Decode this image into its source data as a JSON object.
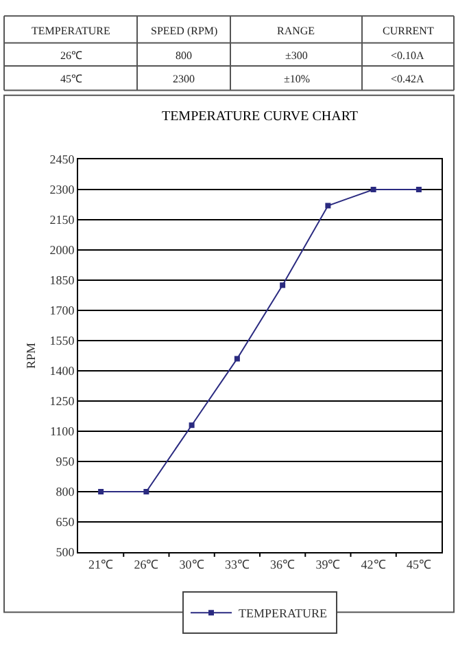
{
  "chart_data": {
    "type": "line",
    "title": "TEMPERATURE CURVE CHART",
    "ylabel": "RPM",
    "categories": [
      "21℃",
      "26℃",
      "30℃",
      "33℃",
      "36℃",
      "39℃",
      "42℃",
      "45℃"
    ],
    "series": [
      {
        "name": "TEMPERATURE",
        "color": "#2a2a80",
        "values": [
          800,
          800,
          1130,
          1460,
          1825,
          2220,
          2300,
          2300
        ]
      }
    ],
    "ylim": [
      500,
      2450
    ],
    "yticks": [
      500,
      650,
      800,
      950,
      1100,
      1250,
      1400,
      1550,
      1700,
      1850,
      2000,
      2150,
      2300,
      2450
    ],
    "grid": "y",
    "legend": "bottom",
    "marker": "square",
    "line_style": "solid",
    "annotations": [
      "TEMPERATURE",
      "SPEED (RPM)",
      "RANGE",
      "CURRENT",
      "26℃",
      "800",
      "±300",
      "<0.10A",
      "45℃",
      "2300",
      "±10%",
      "<0.42A"
    ]
  }
}
